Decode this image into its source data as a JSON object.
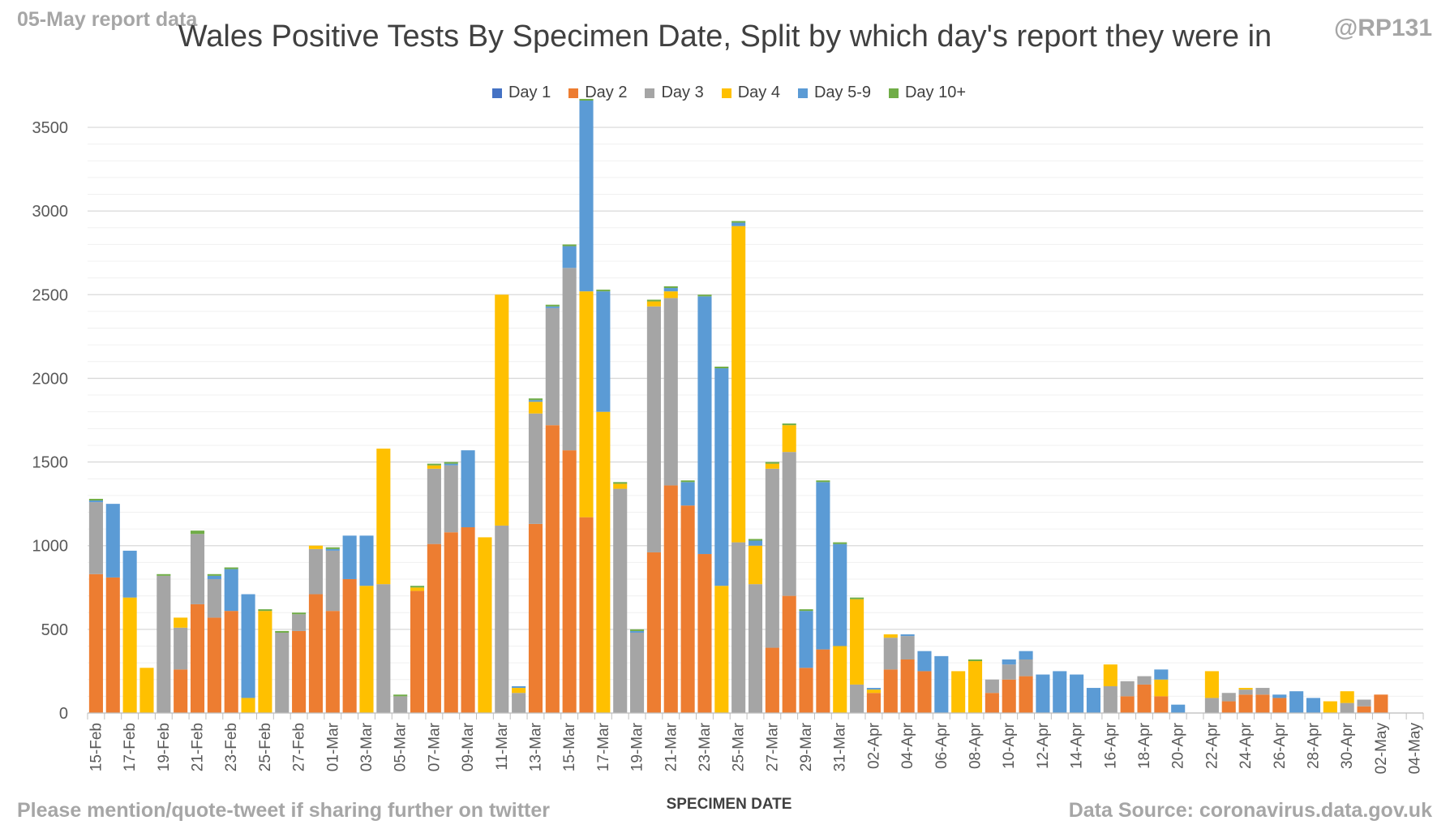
{
  "report_label": "05-May report data",
  "handle": "@RP131",
  "footer_left": "Please mention/quote-tweet if sharing further on twitter",
  "footer_right": "Data Source: coronavirus.data.gov.uk",
  "chart_data": {
    "type": "bar",
    "stacked": true,
    "title": "Wales Positive Tests By Specimen Date, Split by which day's report they were in",
    "xlabel": "SPECIMEN DATE",
    "ylabel": "",
    "ylim": [
      0,
      3500
    ],
    "yticks": [
      0,
      500,
      1000,
      1500,
      2000,
      2500,
      3000,
      3500
    ],
    "grid": true,
    "legend_position": "top",
    "categories": [
      "15-Feb",
      "16-Feb",
      "17-Feb",
      "18-Feb",
      "19-Feb",
      "20-Feb",
      "21-Feb",
      "22-Feb",
      "23-Feb",
      "24-Feb",
      "25-Feb",
      "26-Feb",
      "27-Feb",
      "28-Feb",
      "01-Mar",
      "02-Mar",
      "03-Mar",
      "04-Mar",
      "05-Mar",
      "06-Mar",
      "07-Mar",
      "08-Mar",
      "09-Mar",
      "10-Mar",
      "11-Mar",
      "12-Mar",
      "13-Mar",
      "14-Mar",
      "15-Mar",
      "16-Mar",
      "17-Mar",
      "18-Mar",
      "19-Mar",
      "20-Mar",
      "21-Mar",
      "22-Mar",
      "23-Mar",
      "24-Mar",
      "25-Mar",
      "26-Mar",
      "27-Mar",
      "28-Mar",
      "29-Mar",
      "30-Mar",
      "31-Mar",
      "01-Apr",
      "02-Apr",
      "03-Apr",
      "04-Apr",
      "05-Apr",
      "06-Apr",
      "07-Apr",
      "08-Apr",
      "09-Apr",
      "10-Apr",
      "11-Apr",
      "12-Apr",
      "13-Apr",
      "14-Apr",
      "15-Apr",
      "16-Apr",
      "17-Apr",
      "18-Apr",
      "19-Apr",
      "20-Apr",
      "21-Apr",
      "22-Apr",
      "23-Apr",
      "24-Apr",
      "25-Apr",
      "26-Apr",
      "27-Apr",
      "28-Apr",
      "29-Apr",
      "30-Apr",
      "01-May",
      "02-May",
      "03-May",
      "04-May"
    ],
    "tick_labels": [
      "15-Feb",
      "17-Feb",
      "19-Feb",
      "21-Feb",
      "23-Feb",
      "25-Feb",
      "27-Feb",
      "01-Mar",
      "03-Mar",
      "05-Mar",
      "07-Mar",
      "09-Mar",
      "11-Mar",
      "13-Mar",
      "15-Mar",
      "17-Mar",
      "19-Mar",
      "21-Mar",
      "23-Mar",
      "25-Mar",
      "27-Mar",
      "29-Mar",
      "31-Mar",
      "02-Apr",
      "04-Apr",
      "06-Apr",
      "08-Apr",
      "10-Apr",
      "12-Apr",
      "14-Apr",
      "16-Apr",
      "18-Apr",
      "20-Apr",
      "22-Apr",
      "24-Apr",
      "26-Apr",
      "28-Apr",
      "30-Apr",
      "02-May",
      "04-May"
    ],
    "series": [
      {
        "name": "Day 1",
        "color": "#4472c4",
        "values": [
          0,
          0,
          0,
          0,
          0,
          0,
          0,
          0,
          0,
          0,
          0,
          0,
          0,
          0,
          0,
          0,
          0,
          0,
          0,
          0,
          0,
          0,
          0,
          0,
          0,
          0,
          0,
          0,
          0,
          0,
          0,
          0,
          0,
          0,
          0,
          0,
          0,
          0,
          0,
          0,
          0,
          0,
          0,
          0,
          0,
          0,
          0,
          0,
          0,
          0,
          0,
          0,
          0,
          0,
          0,
          0,
          0,
          0,
          0,
          0,
          0,
          0,
          0,
          0,
          0,
          0,
          0,
          0,
          0,
          0,
          0,
          0,
          0,
          0,
          0,
          0,
          0,
          0,
          0
        ]
      },
      {
        "name": "Day 2",
        "color": "#ed7d31",
        "values": [
          830,
          810,
          0,
          0,
          0,
          260,
          650,
          570,
          610,
          0,
          0,
          0,
          490,
          710,
          610,
          800,
          0,
          0,
          0,
          730,
          1010,
          1080,
          1110,
          0,
          0,
          0,
          1130,
          1720,
          1570,
          1170,
          0,
          0,
          0,
          960,
          1360,
          1240,
          950,
          0,
          0,
          0,
          390,
          700,
          270,
          380,
          0,
          0,
          120,
          260,
          320,
          250,
          0,
          0,
          0,
          120,
          200,
          220,
          0,
          0,
          0,
          0,
          0,
          100,
          170,
          100,
          0,
          0,
          0,
          70,
          110,
          110,
          90,
          0,
          0,
          0,
          0,
          40,
          110,
          0,
          0
        ]
      },
      {
        "name": "Day 3",
        "color": "#a5a5a5",
        "values": [
          430,
          0,
          0,
          0,
          820,
          250,
          420,
          230,
          0,
          0,
          0,
          480,
          100,
          270,
          360,
          0,
          0,
          770,
          100,
          0,
          450,
          400,
          0,
          0,
          1120,
          120,
          660,
          700,
          1090,
          0,
          0,
          1340,
          480,
          1470,
          1120,
          0,
          0,
          0,
          1020,
          770,
          1070,
          860,
          0,
          0,
          0,
          170,
          0,
          190,
          140,
          0,
          0,
          0,
          0,
          80,
          90,
          100,
          0,
          0,
          0,
          0,
          160,
          90,
          50,
          0,
          0,
          0,
          90,
          50,
          30,
          40,
          0,
          0,
          0,
          0,
          60,
          40,
          0,
          0,
          0
        ]
      },
      {
        "name": "Day 4",
        "color": "#ffc000",
        "values": [
          0,
          0,
          690,
          270,
          0,
          60,
          0,
          0,
          0,
          90,
          610,
          0,
          0,
          20,
          0,
          0,
          760,
          810,
          0,
          20,
          20,
          0,
          0,
          1050,
          1380,
          30,
          70,
          0,
          0,
          1350,
          1800,
          30,
          0,
          30,
          40,
          0,
          0,
          760,
          1890,
          230,
          30,
          160,
          0,
          0,
          400,
          510,
          20,
          20,
          0,
          0,
          0,
          250,
          310,
          0,
          0,
          0,
          0,
          0,
          0,
          0,
          130,
          0,
          0,
          100,
          0,
          0,
          160,
          0,
          10,
          0,
          0,
          0,
          0,
          70,
          70,
          0,
          0,
          0,
          0
        ]
      },
      {
        "name": "Day 5-9",
        "color": "#5b9bd5",
        "values": [
          10,
          440,
          280,
          0,
          0,
          0,
          0,
          20,
          250,
          620,
          0,
          0,
          0,
          0,
          10,
          260,
          300,
          0,
          0,
          0,
          0,
          10,
          460,
          0,
          0,
          10,
          10,
          10,
          130,
          1140,
          720,
          0,
          10,
          0,
          20,
          140,
          1540,
          1300,
          20,
          30,
          0,
          0,
          340,
          1000,
          610,
          0,
          10,
          0,
          10,
          120,
          340,
          0,
          0,
          0,
          30,
          50,
          230,
          250,
          230,
          150,
          0,
          0,
          0,
          60,
          50,
          0,
          0,
          0,
          0,
          0,
          20,
          130,
          90,
          0,
          0,
          0,
          0,
          0,
          0
        ]
      },
      {
        "name": "Day 10+",
        "color": "#70ad47",
        "values": [
          10,
          0,
          0,
          0,
          10,
          0,
          20,
          10,
          10,
          0,
          10,
          10,
          10,
          0,
          10,
          0,
          0,
          0,
          10,
          10,
          10,
          10,
          0,
          0,
          0,
          0,
          10,
          10,
          10,
          10,
          10,
          10,
          10,
          10,
          10,
          10,
          10,
          10,
          10,
          10,
          10,
          10,
          10,
          10,
          10,
          10,
          0,
          0,
          0,
          0,
          0,
          0,
          10,
          0,
          0,
          0,
          0,
          0,
          0,
          0,
          0,
          0,
          0,
          0,
          0,
          0,
          0,
          0,
          0,
          0,
          0,
          0,
          0,
          0,
          0,
          0,
          0,
          0,
          0
        ]
      }
    ]
  }
}
